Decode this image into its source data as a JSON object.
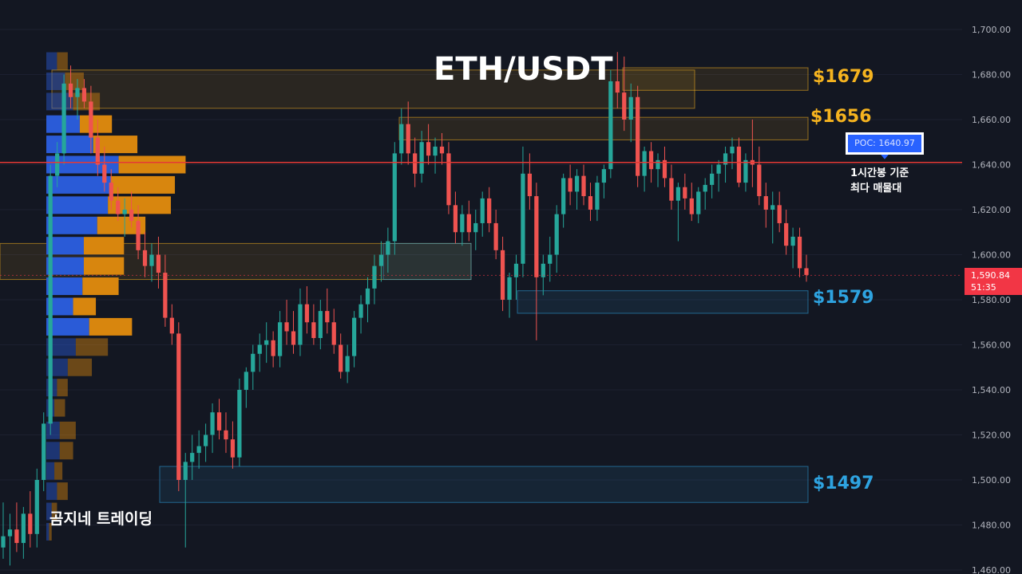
{
  "title": "ETH/USDT",
  "brand": "곰지네 트레이딩",
  "levels": {
    "l1679": "$1679",
    "l1656": "$1656",
    "l1579": "$1579",
    "l1497": "$1497"
  },
  "poc": {
    "label": "POC: 1640.97",
    "note_line1": "1시간봉 기준",
    "note_line2": "최다 매물대"
  },
  "current": {
    "price": "1,590.84",
    "countdown": "51:35"
  },
  "colors": {
    "background": "#131722",
    "up": "#26a69a",
    "down": "#ef5350",
    "resistance": "#f5b31f",
    "support": "#2ea3e0",
    "poc_line": "#e53935",
    "volume_buy": "#2a5bd7",
    "volume_sell": "#d8860e"
  },
  "chart_data": {
    "type": "candlestick",
    "y_axis": {
      "ticks": [
        "1,700.00",
        "1,680.00",
        "1,660.00",
        "1,640.00",
        "1,620.00",
        "1,600.00",
        "1,580.00",
        "1,560.00",
        "1,540.00",
        "1,520.00",
        "1,500.00",
        "1,480.00",
        "1,460.00"
      ],
      "range": [
        1460,
        1700
      ]
    },
    "poc_price": 1640.97,
    "current_price": 1590.84,
    "zones": [
      {
        "label": "$1679",
        "low": 1673,
        "high": 1683,
        "kind": "resistance"
      },
      {
        "label": "$1656",
        "low": 1651,
        "high": 1661,
        "kind": "resistance"
      },
      {
        "label": "",
        "low": 1665,
        "high": 1682,
        "kind": "resistance"
      },
      {
        "label": "",
        "low": 1589,
        "high": 1605,
        "kind": "resistance"
      },
      {
        "label": "$1579",
        "low": 1574,
        "high": 1584,
        "kind": "support"
      },
      {
        "label": "",
        "low": 1589,
        "high": 1605,
        "kind": "support"
      },
      {
        "label": "$1497",
        "low": 1490,
        "high": 1506,
        "kind": "support"
      }
    ],
    "volume_profile": [
      {
        "price": 1686,
        "buy": 8,
        "sell": 8
      },
      {
        "price": 1677,
        "buy": 14,
        "sell": 14
      },
      {
        "price": 1668,
        "buy": 20,
        "sell": 20
      },
      {
        "price": 1658,
        "buy": 25,
        "sell": 24
      },
      {
        "price": 1649,
        "buy": 35,
        "sell": 33
      },
      {
        "price": 1640,
        "buy": 54,
        "sell": 50
      },
      {
        "price": 1631,
        "buy": 48,
        "sell": 48
      },
      {
        "price": 1622,
        "buy": 46,
        "sell": 47
      },
      {
        "price": 1613,
        "buy": 38,
        "sell": 36
      },
      {
        "price": 1604,
        "buy": 28,
        "sell": 30
      },
      {
        "price": 1595,
        "buy": 28,
        "sell": 30
      },
      {
        "price": 1586,
        "buy": 27,
        "sell": 27
      },
      {
        "price": 1577,
        "buy": 20,
        "sell": 17
      },
      {
        "price": 1568,
        "buy": 32,
        "sell": 32
      },
      {
        "price": 1559,
        "buy": 22,
        "sell": 24
      },
      {
        "price": 1550,
        "buy": 16,
        "sell": 18
      },
      {
        "price": 1541,
        "buy": 8,
        "sell": 8
      },
      {
        "price": 1532,
        "buy": 6,
        "sell": 8
      },
      {
        "price": 1522,
        "buy": 10,
        "sell": 12
      },
      {
        "price": 1513,
        "buy": 10,
        "sell": 10
      },
      {
        "price": 1504,
        "buy": 6,
        "sell": 6
      },
      {
        "price": 1495,
        "buy": 8,
        "sell": 8
      },
      {
        "price": 1486,
        "buy": 4,
        "sell": 4
      },
      {
        "price": 1477,
        "buy": 2,
        "sell": 2
      }
    ],
    "candles": [
      [
        1470,
        1490,
        1465,
        1475
      ],
      [
        1475,
        1485,
        1462,
        1478
      ],
      [
        1478,
        1490,
        1468,
        1472
      ],
      [
        1472,
        1488,
        1465,
        1485
      ],
      [
        1485,
        1495,
        1470,
        1476
      ],
      [
        1476,
        1505,
        1470,
        1500
      ],
      [
        1500,
        1530,
        1495,
        1525
      ],
      [
        1525,
        1640,
        1520,
        1635
      ],
      [
        1635,
        1650,
        1630,
        1645
      ],
      [
        1645,
        1680,
        1640,
        1676
      ],
      [
        1676,
        1684,
        1665,
        1670
      ],
      [
        1670,
        1678,
        1660,
        1674
      ],
      [
        1674,
        1678,
        1665,
        1668
      ],
      [
        1668,
        1675,
        1645,
        1652
      ],
      [
        1652,
        1660,
        1635,
        1640
      ],
      [
        1640,
        1648,
        1628,
        1632
      ],
      [
        1632,
        1638,
        1620,
        1624
      ],
      [
        1624,
        1630,
        1615,
        1618
      ],
      [
        1618,
        1625,
        1608,
        1620
      ],
      [
        1620,
        1628,
        1612,
        1615
      ],
      [
        1615,
        1622,
        1598,
        1602
      ],
      [
        1602,
        1610,
        1590,
        1595
      ],
      [
        1595,
        1605,
        1588,
        1600
      ],
      [
        1600,
        1608,
        1585,
        1592
      ],
      [
        1592,
        1600,
        1568,
        1572
      ],
      [
        1572,
        1578,
        1560,
        1565
      ],
      [
        1565,
        1570,
        1495,
        1500
      ],
      [
        1500,
        1512,
        1470,
        1508
      ],
      [
        1508,
        1520,
        1500,
        1512
      ],
      [
        1512,
        1522,
        1505,
        1515
      ],
      [
        1515,
        1525,
        1508,
        1520
      ],
      [
        1520,
        1534,
        1512,
        1530
      ],
      [
        1530,
        1536,
        1518,
        1522
      ],
      [
        1522,
        1530,
        1512,
        1518
      ],
      [
        1518,
        1526,
        1505,
        1510
      ],
      [
        1510,
        1545,
        1506,
        1540
      ],
      [
        1540,
        1550,
        1532,
        1548
      ],
      [
        1548,
        1560,
        1540,
        1556
      ],
      [
        1556,
        1565,
        1548,
        1560
      ],
      [
        1560,
        1570,
        1552,
        1562
      ],
      [
        1562,
        1566,
        1550,
        1555
      ],
      [
        1555,
        1575,
        1550,
        1570
      ],
      [
        1570,
        1580,
        1560,
        1566
      ],
      [
        1566,
        1575,
        1556,
        1560
      ],
      [
        1560,
        1585,
        1555,
        1578
      ],
      [
        1578,
        1586,
        1565,
        1570
      ],
      [
        1570,
        1578,
        1560,
        1563
      ],
      [
        1563,
        1580,
        1558,
        1575
      ],
      [
        1575,
        1585,
        1565,
        1570
      ],
      [
        1570,
        1576,
        1556,
        1560
      ],
      [
        1560,
        1565,
        1545,
        1548
      ],
      [
        1548,
        1560,
        1543,
        1555
      ],
      [
        1555,
        1575,
        1550,
        1572
      ],
      [
        1572,
        1582,
        1565,
        1578
      ],
      [
        1578,
        1590,
        1570,
        1585
      ],
      [
        1585,
        1600,
        1578,
        1595
      ],
      [
        1595,
        1606,
        1588,
        1600
      ],
      [
        1600,
        1612,
        1592,
        1606
      ],
      [
        1606,
        1650,
        1600,
        1645
      ],
      [
        1645,
        1665,
        1640,
        1658
      ],
      [
        1658,
        1668,
        1640,
        1645
      ],
      [
        1645,
        1652,
        1630,
        1636
      ],
      [
        1636,
        1655,
        1632,
        1650
      ],
      [
        1650,
        1658,
        1640,
        1644
      ],
      [
        1644,
        1652,
        1636,
        1648
      ],
      [
        1648,
        1654,
        1640,
        1645
      ],
      [
        1645,
        1650,
        1618,
        1622
      ],
      [
        1622,
        1628,
        1605,
        1610
      ],
      [
        1610,
        1622,
        1604,
        1618
      ],
      [
        1618,
        1624,
        1606,
        1610
      ],
      [
        1610,
        1620,
        1602,
        1614
      ],
      [
        1614,
        1628,
        1608,
        1625
      ],
      [
        1625,
        1630,
        1610,
        1614
      ],
      [
        1614,
        1620,
        1598,
        1602
      ],
      [
        1602,
        1608,
        1575,
        1580
      ],
      [
        1580,
        1592,
        1572,
        1590
      ],
      [
        1590,
        1600,
        1580,
        1596
      ],
      [
        1596,
        1648,
        1590,
        1636
      ],
      [
        1636,
        1645,
        1620,
        1626
      ],
      [
        1626,
        1632,
        1562,
        1590
      ],
      [
        1590,
        1600,
        1582,
        1596
      ],
      [
        1596,
        1608,
        1588,
        1600
      ],
      [
        1600,
        1622,
        1592,
        1618
      ],
      [
        1618,
        1636,
        1612,
        1634
      ],
      [
        1634,
        1640,
        1622,
        1628
      ],
      [
        1628,
        1638,
        1620,
        1635
      ],
      [
        1635,
        1640,
        1622,
        1626
      ],
      [
        1626,
        1632,
        1615,
        1620
      ],
      [
        1620,
        1635,
        1615,
        1632
      ],
      [
        1632,
        1640,
        1625,
        1638
      ],
      [
        1638,
        1682,
        1634,
        1677
      ],
      [
        1677,
        1690,
        1665,
        1672
      ],
      [
        1672,
        1688,
        1655,
        1660
      ],
      [
        1660,
        1676,
        1650,
        1670
      ],
      [
        1670,
        1675,
        1630,
        1635
      ],
      [
        1635,
        1648,
        1628,
        1646
      ],
      [
        1646,
        1650,
        1632,
        1638
      ],
      [
        1638,
        1645,
        1630,
        1642
      ],
      [
        1642,
        1648,
        1630,
        1634
      ],
      [
        1634,
        1640,
        1620,
        1624
      ],
      [
        1624,
        1632,
        1606,
        1630
      ],
      [
        1630,
        1636,
        1620,
        1625
      ],
      [
        1625,
        1632,
        1615,
        1618
      ],
      [
        1618,
        1630,
        1614,
        1628
      ],
      [
        1628,
        1634,
        1620,
        1631
      ],
      [
        1631,
        1640,
        1625,
        1636
      ],
      [
        1636,
        1642,
        1628,
        1640
      ],
      [
        1640,
        1648,
        1632,
        1645
      ],
      [
        1645,
        1652,
        1638,
        1648
      ],
      [
        1648,
        1652,
        1630,
        1632
      ],
      [
        1632,
        1645,
        1628,
        1642
      ],
      [
        1642,
        1660,
        1630,
        1640
      ],
      [
        1640,
        1648,
        1622,
        1626
      ],
      [
        1626,
        1632,
        1612,
        1620
      ],
      [
        1620,
        1628,
        1605,
        1622
      ],
      [
        1622,
        1628,
        1610,
        1614
      ],
      [
        1614,
        1620,
        1600,
        1604
      ],
      [
        1604,
        1612,
        1594,
        1608
      ],
      [
        1608,
        1612,
        1590,
        1594
      ],
      [
        1594,
        1600,
        1588,
        1591
      ]
    ]
  }
}
